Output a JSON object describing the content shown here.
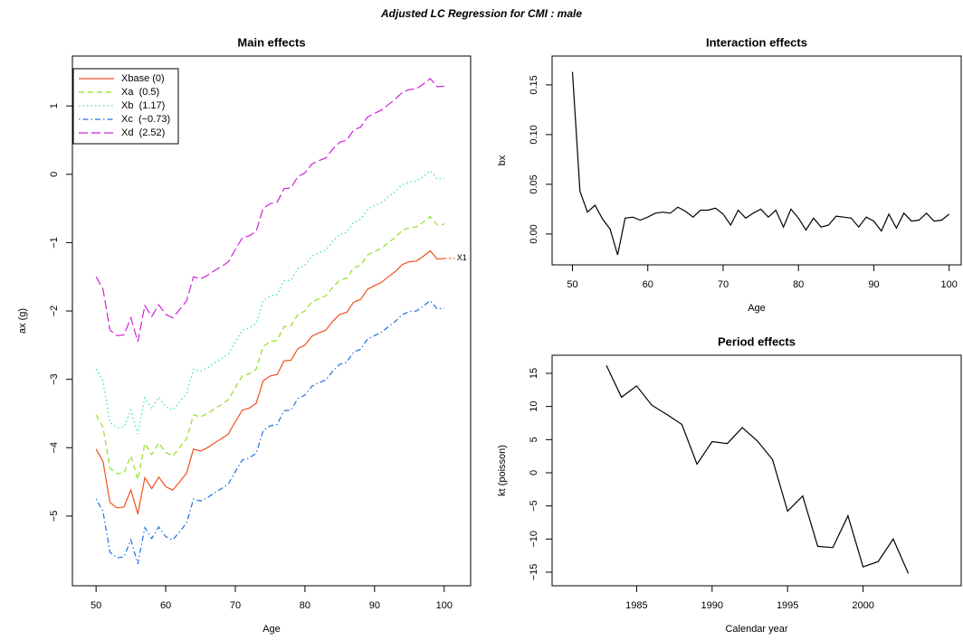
{
  "title": "Adjusted LC Regression for CMI : male",
  "chart_data": [
    {
      "type": "line",
      "title": "Main effects",
      "xlabel": "Age",
      "ylabel": "ax (g)",
      "x": [
        50,
        51,
        52,
        53,
        54,
        55,
        56,
        57,
        58,
        59,
        60,
        61,
        62,
        63,
        64,
        65,
        66,
        67,
        68,
        69,
        70,
        71,
        72,
        73,
        74,
        75,
        76,
        77,
        78,
        79,
        80,
        81,
        82,
        83,
        84,
        85,
        86,
        87,
        88,
        89,
        90,
        91,
        92,
        93,
        94,
        95,
        96,
        97,
        98,
        99,
        100
      ],
      "xlim": [
        46.6,
        103.8
      ],
      "xticks": [
        50,
        60,
        70,
        80,
        90,
        100
      ],
      "ylim": [
        -6.02,
        1.73
      ],
      "yticks": [
        {
          "value": -5,
          "label": "−5"
        },
        {
          "value": -4,
          "label": "−4"
        },
        {
          "value": -3,
          "label": "−3"
        },
        {
          "value": -2,
          "label": "−2"
        },
        {
          "value": -1,
          "label": "−1"
        },
        0,
        1
      ],
      "legend": "topleft",
      "annotation": "X1",
      "series": [
        {
          "name": "Xbase (0)",
          "color": "#f0501e",
          "linestyle": "solid",
          "values": [
            -4.02,
            -4.2,
            -4.8,
            -4.88,
            -4.87,
            -4.62,
            -4.97,
            -4.44,
            -4.6,
            -4.43,
            -4.57,
            -4.62,
            -4.5,
            -4.37,
            -4.02,
            -4.05,
            -4.0,
            -3.93,
            -3.87,
            -3.8,
            -3.62,
            -3.45,
            -3.42,
            -3.35,
            -3.02,
            -2.95,
            -2.93,
            -2.73,
            -2.72,
            -2.55,
            -2.5,
            -2.37,
            -2.32,
            -2.28,
            -2.15,
            -2.05,
            -2.02,
            -1.87,
            -1.83,
            -1.68,
            -1.63,
            -1.58,
            -1.5,
            -1.42,
            -1.32,
            -1.28,
            -1.27,
            -1.2,
            -1.12,
            -1.24,
            -1.23
          ]
        },
        {
          "name": "Xa  (0.5)",
          "color": "#90e020",
          "linestyle": "dashed",
          "values": [
            -3.52,
            -3.7,
            -4.3,
            -4.38,
            -4.37,
            -4.12,
            -4.47,
            -3.94,
            -4.1,
            -3.93,
            -4.07,
            -4.12,
            -4.0,
            -3.87,
            -3.52,
            -3.55,
            -3.5,
            -3.43,
            -3.37,
            -3.3,
            -3.12,
            -2.95,
            -2.92,
            -2.85,
            -2.52,
            -2.45,
            -2.43,
            -2.23,
            -2.22,
            -2.05,
            -2.0,
            -1.87,
            -1.82,
            -1.78,
            -1.65,
            -1.55,
            -1.52,
            -1.37,
            -1.33,
            -1.18,
            -1.13,
            -1.08,
            -1.0,
            -0.92,
            -0.82,
            -0.78,
            -0.77,
            -0.7,
            -0.62,
            -0.74,
            -0.73
          ]
        },
        {
          "name": "Xb  (1.17)",
          "color": "#30e0a0",
          "linestyle": "dotted",
          "values": [
            -2.85,
            -3.03,
            -3.63,
            -3.71,
            -3.7,
            -3.45,
            -3.8,
            -3.27,
            -3.43,
            -3.26,
            -3.4,
            -3.45,
            -3.33,
            -3.2,
            -2.85,
            -2.88,
            -2.83,
            -2.76,
            -2.7,
            -2.63,
            -2.45,
            -2.28,
            -2.25,
            -2.18,
            -1.85,
            -1.78,
            -1.76,
            -1.56,
            -1.55,
            -1.38,
            -1.33,
            -1.2,
            -1.15,
            -1.11,
            -0.98,
            -0.88,
            -0.85,
            -0.7,
            -0.66,
            -0.51,
            -0.46,
            -0.41,
            -0.33,
            -0.25,
            -0.15,
            -0.11,
            -0.1,
            -0.03,
            0.05,
            -0.07,
            -0.06
          ]
        },
        {
          "name": "Xc  (−0.73)",
          "color": "#2070e0",
          "linestyle": "dotdash",
          "values": [
            -4.75,
            -4.93,
            -5.53,
            -5.61,
            -5.6,
            -5.35,
            -5.7,
            -5.17,
            -5.33,
            -5.16,
            -5.3,
            -5.35,
            -5.23,
            -5.1,
            -4.75,
            -4.78,
            -4.73,
            -4.66,
            -4.6,
            -4.53,
            -4.35,
            -4.18,
            -4.15,
            -4.08,
            -3.75,
            -3.68,
            -3.66,
            -3.46,
            -3.45,
            -3.28,
            -3.23,
            -3.1,
            -3.05,
            -3.01,
            -2.88,
            -2.78,
            -2.75,
            -2.6,
            -2.56,
            -2.41,
            -2.36,
            -2.31,
            -2.23,
            -2.15,
            -2.05,
            -2.01,
            -2.0,
            -1.93,
            -1.85,
            -1.97,
            -1.96
          ]
        },
        {
          "name": "Xd  (2.52)",
          "color": "#d020d8",
          "linestyle": "longdash",
          "values": [
            -1.5,
            -1.68,
            -2.28,
            -2.36,
            -2.35,
            -2.1,
            -2.45,
            -1.92,
            -2.08,
            -1.91,
            -2.05,
            -2.1,
            -1.98,
            -1.85,
            -1.5,
            -1.53,
            -1.48,
            -1.41,
            -1.35,
            -1.28,
            -1.1,
            -0.93,
            -0.9,
            -0.83,
            -0.5,
            -0.43,
            -0.41,
            -0.21,
            -0.2,
            -0.03,
            0.02,
            0.15,
            0.2,
            0.24,
            0.37,
            0.47,
            0.5,
            0.65,
            0.69,
            0.84,
            0.89,
            0.94,
            1.02,
            1.1,
            1.2,
            1.24,
            1.25,
            1.32,
            1.4,
            1.28,
            1.29
          ]
        }
      ]
    },
    {
      "type": "line",
      "title": "Interaction effects",
      "xlabel": "Age",
      "ylabel": "bx",
      "x": [
        50,
        51,
        52,
        53,
        54,
        55,
        56,
        57,
        58,
        59,
        60,
        61,
        62,
        63,
        64,
        65,
        66,
        67,
        68,
        69,
        70,
        71,
        72,
        73,
        74,
        75,
        76,
        77,
        78,
        79,
        80,
        81,
        82,
        83,
        84,
        85,
        86,
        87,
        88,
        89,
        90,
        91,
        92,
        93,
        94,
        95,
        96,
        97,
        98,
        99,
        100
      ],
      "xlim": [
        47.3,
        101.6
      ],
      "xticks": [
        50,
        60,
        70,
        80,
        90,
        100
      ],
      "ylim": [
        -0.031,
        0.179
      ],
      "yticks": [
        {
          "value": 0,
          "label": "0.00"
        },
        0.05,
        {
          "value": 0.1,
          "label": "0.10"
        },
        0.15
      ],
      "color": "#000000",
      "values": [
        0.163,
        0.043,
        0.022,
        0.029,
        0.015,
        0.005,
        -0.021,
        0.016,
        0.017,
        0.014,
        0.017,
        0.021,
        0.022,
        0.021,
        0.027,
        0.023,
        0.017,
        0.024,
        0.024,
        0.026,
        0.02,
        0.009,
        0.024,
        0.016,
        0.021,
        0.025,
        0.017,
        0.024,
        0.007,
        0.025,
        0.016,
        0.004,
        0.016,
        0.007,
        0.009,
        0.018,
        0.017,
        0.016,
        0.007,
        0.017,
        0.013,
        0.003,
        0.02,
        0.006,
        0.021,
        0.013,
        0.014,
        0.021,
        0.013,
        0.014,
        0.02
      ]
    },
    {
      "type": "line",
      "title": "Period effects",
      "xlabel": "Calendar year",
      "ylabel": "kt (poisson)",
      "x": [
        1983,
        1984,
        1985,
        1986,
        1987,
        1988,
        1989,
        1990,
        1991,
        1992,
        1993,
        1994,
        1995,
        1996,
        1997,
        1998,
        1999,
        2000,
        2001,
        2002,
        2003
      ],
      "xlim": [
        1979.4,
        2006.5
      ],
      "xticks": [
        1985,
        1990,
        1995,
        2000
      ],
      "ylim": [
        -17.05,
        17.73
      ],
      "yticks": [
        {
          "value": -15,
          "label": "−15"
        },
        {
          "value": -10,
          "label": "−10"
        },
        {
          "value": -5,
          "label": "−5"
        },
        0,
        5,
        10,
        15
      ],
      "color": "#000000",
      "values": [
        16.2,
        11.4,
        13.1,
        10.2,
        8.8,
        7.3,
        1.3,
        4.7,
        4.4,
        6.8,
        4.8,
        2.0,
        -5.8,
        -3.5,
        -11.1,
        -11.3,
        -6.5,
        -14.2,
        -13.4,
        -10.0,
        -15.2
      ]
    }
  ]
}
